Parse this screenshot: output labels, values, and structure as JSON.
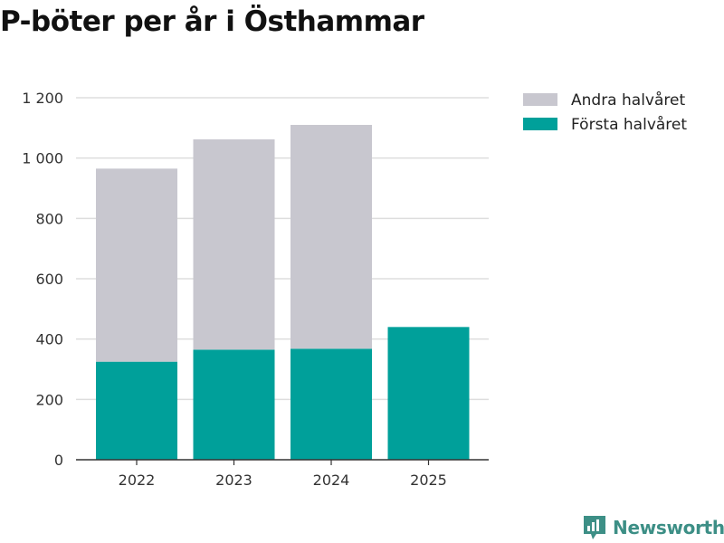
{
  "title": "P-böter per år i Östhammar",
  "brand": {
    "name": "Newsworthy",
    "color": "#3d8f86"
  },
  "chart_data": {
    "type": "bar",
    "stacked": true,
    "title": "P-böter per år i Östhammar",
    "xlabel": "",
    "ylabel": "",
    "categories": [
      "2022",
      "2023",
      "2024",
      "2025"
    ],
    "ylim": [
      0,
      1200
    ],
    "yticks": [
      0,
      200,
      400,
      600,
      800,
      1000,
      1200
    ],
    "ytick_labels": [
      "0",
      "200",
      "400",
      "600",
      "800",
      "1 000",
      "1 200"
    ],
    "grid": true,
    "legend_position": "top-right",
    "series": [
      {
        "name": "Första halvåret",
        "color": "#00a09a",
        "values": [
          325,
          365,
          368,
          440
        ]
      },
      {
        "name": "Andra halvåret",
        "color": "#c8c7cf",
        "values": [
          640,
          697,
          742,
          null
        ]
      }
    ]
  }
}
